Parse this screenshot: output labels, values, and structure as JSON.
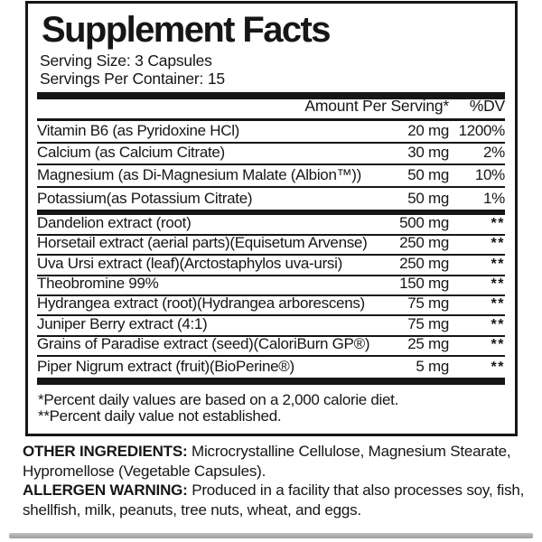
{
  "panel": {
    "title": "Supplement Facts",
    "serving_size": "Serving Size: 3 Capsules",
    "servings_per_container": "Servings Per Container: 15",
    "header": {
      "amount": "Amount Per Serving*",
      "dv": "%DV"
    },
    "rows": [
      {
        "name": "Vitamin B6 (as Pyridoxine HCl)",
        "amount": "20 mg",
        "dv": "1200%",
        "established": true
      },
      {
        "name": "Calcium (as Calcium Citrate)",
        "amount": "30 mg",
        "dv": "2%",
        "established": true
      },
      {
        "name": "Magnesium (as Di-Magnesium Malate (Albion™))",
        "amount": "50 mg",
        "dv": "10%",
        "established": true
      },
      {
        "name": "Potassium(as Potassium Citrate)",
        "amount": "50 mg",
        "dv": "1%",
        "established": true
      },
      {
        "name": "Dandelion extract (root)",
        "amount": "500 mg",
        "dv": "**",
        "established": false
      },
      {
        "name": "Horsetail extract (aerial parts)(Equisetum Arvense)",
        "amount": "250 mg",
        "dv": "**",
        "established": false
      },
      {
        "name": "Uva Ursi extract (leaf)(Arctostaphylos uva-ursi)",
        "amount": "250 mg",
        "dv": "**",
        "established": false
      },
      {
        "name": "Theobromine 99%",
        "amount": "150 mg",
        "dv": "**",
        "established": false
      },
      {
        "name": "Hydrangea extract (root)(Hydrangea arborescens)",
        "amount": "75 mg",
        "dv": "**",
        "established": false
      },
      {
        "name": "Juniper Berry extract (4:1)",
        "amount": "75 mg",
        "dv": "**",
        "established": false
      },
      {
        "name": "Grains of Paradise extract (seed)(CaloriBurn GP®)",
        "amount": "25 mg",
        "dv": "**",
        "established": false
      },
      {
        "name": "Piper Nigrum extract (fruit)(BioPerine®)",
        "amount": "5 mg",
        "dv": "**",
        "established": false
      }
    ],
    "footnotes": [
      "*Percent daily values are based on a 2,000 calorie diet.",
      "**Percent daily value not established."
    ]
  },
  "bottom": {
    "other_ingredients_label": "OTHER INGREDIENTS:",
    "other_ingredients_text": "Microcrystalline Cellulose, Magnesium Stearate, Hypromellose (Vegetable Capsules).",
    "allergen_label": "ALLERGEN WARNING:",
    "allergen_text": "Produced in a facility that also processes soy, fish, shellfish, milk, peanuts, tree nuts, wheat, and eggs."
  },
  "colors": {
    "text": "#161616",
    "rule": "#161616",
    "background": "#ffffff",
    "bottom_bar": "#a8a8a8"
  }
}
